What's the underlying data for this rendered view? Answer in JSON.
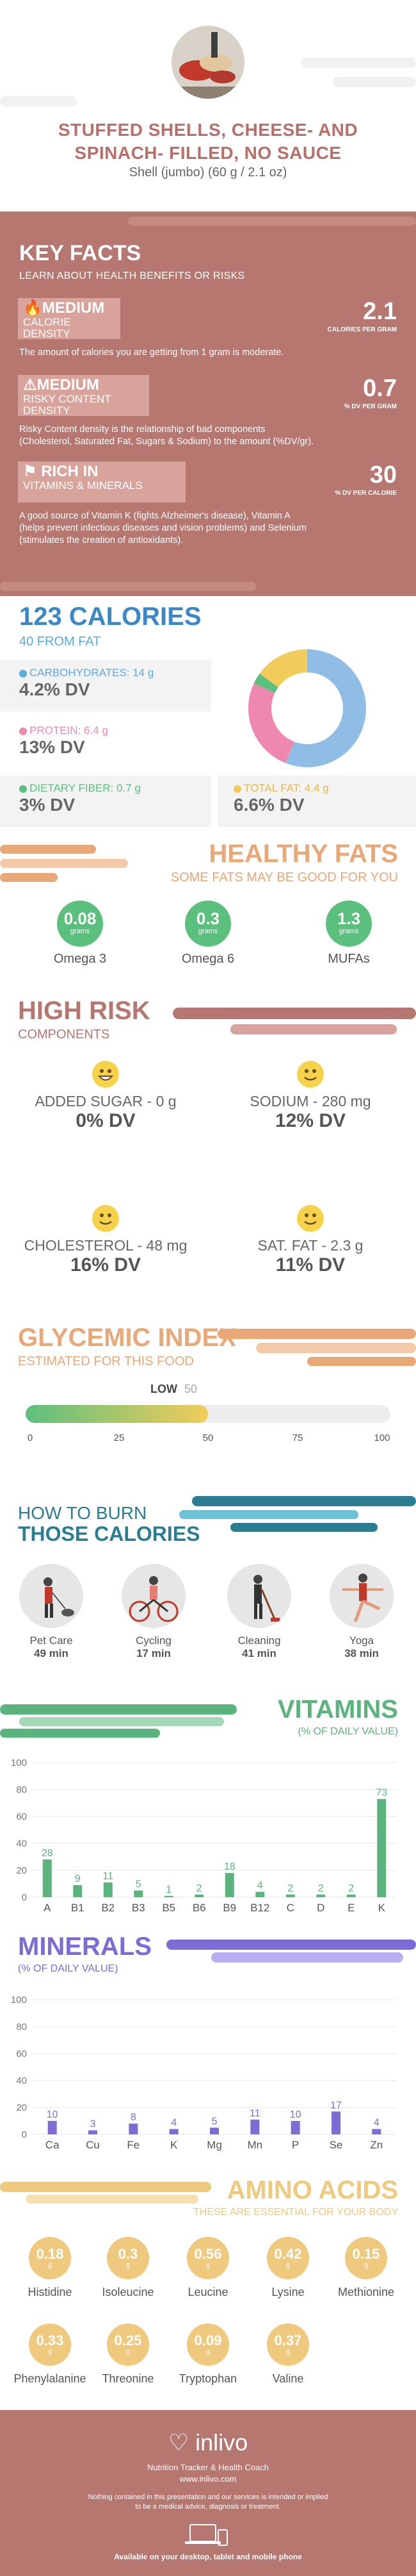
{
  "header": {
    "title_line1": "STUFFED SHELLS, CHEESE- AND",
    "title_line2": "SPINACH- FILLED, NO SAUCE",
    "serving": "Shell (jumbo) (60 g / 2.1 oz)"
  },
  "key_facts": {
    "title": "KEY FACTS",
    "subtitle": "LEARN ABOUT HEALTH BENEFITS OR RISKS",
    "facts": [
      {
        "level": "MEDIUM",
        "name": "CALORIE DENSITY",
        "value": "2.1",
        "unit": "CALORIES PER GRAM",
        "description": "The amount of calories you are getting from 1 gram is moderate.",
        "icon": "flame-icon"
      },
      {
        "level": "MEDIUM",
        "name": "RISKY CONTENT DENSITY",
        "value": "0.7",
        "unit": "% DV PER GRAM",
        "description_line1": "Risky Content density is the relationship of bad components",
        "description_line2": "(Cholesterol, Saturated Fat, Sugars & Sodium) to the amount (%DV/gr).",
        "icon": "warning-icon"
      },
      {
        "level": "RICH  IN",
        "name": "VITAMINS & MINERALS",
        "value": "30",
        "unit": "% DV PER CALORIE",
        "description_line1": "A good source of Vitamin K (fights Alzheimer's disease), Vitamin A",
        "description_line2": "(helps prevent infectious diseases and vision problems) and Selenium",
        "description_line3": "(stimulates the creation of antioxidants).",
        "icon": "flag-icon"
      }
    ]
  },
  "calories": {
    "title": "123 CALORIES",
    "subtitle": "40 FROM FAT",
    "macros": [
      {
        "label": "CARBOHYDRATES: 14 g",
        "dv": "4.2% DV",
        "color": "#5ea9dd"
      },
      {
        "label": "PROTEIN: 6.4 g",
        "dv": "13% DV",
        "color": "#ef88ae"
      },
      {
        "label": "DIETARY FIBER: 0.7 g",
        "dv": "3% DV",
        "color": "#5bc07e"
      },
      {
        "label": "TOTAL FAT: 4.4 g",
        "dv": "6.6% DV",
        "color": "#f2cc5a"
      }
    ],
    "donut": [
      {
        "name": "carbohydrates",
        "value": 56,
        "color": "#8fbde6"
      },
      {
        "name": "protein",
        "value": 26,
        "color": "#ef88ae"
      },
      {
        "name": "fiber",
        "value": 3,
        "color": "#5bc07e"
      },
      {
        "name": "fat",
        "value": 15,
        "color": "#f2cc5a"
      }
    ]
  },
  "healthy_fats": {
    "title": "HEALTHY FATS",
    "subtitle": "SOME FATS MAY BE GOOD FOR YOU",
    "items": [
      {
        "value": "0.08",
        "unit": "grams",
        "name": "Omega 3"
      },
      {
        "value": "0.3",
        "unit": "grams",
        "name": "Omega 6"
      },
      {
        "value": "1.3",
        "unit": "grams",
        "name": "MUFAs"
      }
    ]
  },
  "high_risk": {
    "title": "HIGH RISK",
    "subtitle": "COMPONENTS",
    "items": [
      {
        "label": "ADDED SUGAR - 0 g",
        "dv": "0% DV"
      },
      {
        "label": "SODIUM - 280 mg",
        "dv": "12% DV"
      },
      {
        "label": "CHOLESTEROL - 48 mg",
        "dv": "16% DV"
      },
      {
        "label": "SAT. FAT - 2.3 g",
        "dv": "11% DV"
      }
    ]
  },
  "glycemic": {
    "title": "GLYCEMIC INDEX",
    "subtitle": "ESTIMATED FOR THIS FOOD",
    "level": "LOW",
    "value": "50",
    "value_num": 50,
    "ticks": [
      "0",
      "25",
      "50",
      "75",
      "100"
    ]
  },
  "burn": {
    "title_line1": "HOW TO BURN",
    "title_line2": "THOSE CALORIES",
    "items": [
      {
        "name": "Pet Care",
        "time": "49 min",
        "icon": "dog-walking-icon"
      },
      {
        "name": "Cycling",
        "time": "17 min",
        "icon": "cycling-icon"
      },
      {
        "name": "Cleaning",
        "time": "41 min",
        "icon": "cleaning-icon"
      },
      {
        "name": "Yoga",
        "time": "38 min",
        "icon": "yoga-icon"
      }
    ]
  },
  "vitamins": {
    "title": "VITAMINS",
    "subtitle": "(% OF DAILY VALUE)"
  },
  "minerals": {
    "title": "MINERALS",
    "subtitle": "(% OF DAILY VALUE)"
  },
  "chart_data": [
    {
      "type": "bar",
      "title": "VITAMINS",
      "categories": [
        "A",
        "B1",
        "B2",
        "B3",
        "B5",
        "B6",
        "B9",
        "B12",
        "C",
        "D",
        "E",
        "K"
      ],
      "values": [
        28,
        9,
        11,
        5,
        1,
        2,
        18,
        4,
        2,
        2,
        2,
        73
      ],
      "ylim": [
        0,
        100
      ],
      "yticks": [
        0,
        20,
        40,
        60,
        80,
        100
      ],
      "color": "#5bb37d",
      "grid": true
    },
    {
      "type": "bar",
      "title": "MINERALS",
      "categories": [
        "Ca",
        "Cu",
        "Fe",
        "K",
        "Mg",
        "Mn",
        "P",
        "Se",
        "Zn"
      ],
      "values": [
        10,
        3,
        8,
        4,
        5,
        11,
        10,
        17,
        4
      ],
      "ylim": [
        0,
        100
      ],
      "yticks": [
        0,
        20,
        40,
        60,
        80,
        100
      ],
      "color": "#7e6bd6",
      "grid": true
    }
  ],
  "amino": {
    "title": "AMINO ACIDS",
    "subtitle": "THESE ARE ESSENTIAL FOR YOUR BODY",
    "items": [
      {
        "value": "0.18",
        "unit": "g",
        "name": "Histidine"
      },
      {
        "value": "0.3",
        "unit": "g",
        "name": "Isoleucine"
      },
      {
        "value": "0.56",
        "unit": "g",
        "name": "Leucine"
      },
      {
        "value": "0.42",
        "unit": "g",
        "name": "Lysine"
      },
      {
        "value": "0.15",
        "unit": "g",
        "name": "Methionine"
      },
      {
        "value": "0.33",
        "unit": "g",
        "name": "Phenylalanine"
      },
      {
        "value": "0.25",
        "unit": "g",
        "name": "Threonine"
      },
      {
        "value": "0.09",
        "unit": "g",
        "name": "Tryptophan"
      },
      {
        "value": "0.37",
        "unit": "g",
        "name": "Valine"
      }
    ]
  },
  "footer": {
    "brand": "inlivo",
    "tagline": "Nutrition Tracker & Health Coach",
    "url": "www.inlivo.com",
    "disclaimer_line1": "Nothing contained in this presentation and our services is intended or implied",
    "disclaimer_line2": "to be a medical advice, diagnosis or treatment.",
    "available": "Available on your desktop, tablet and mobile phone"
  }
}
